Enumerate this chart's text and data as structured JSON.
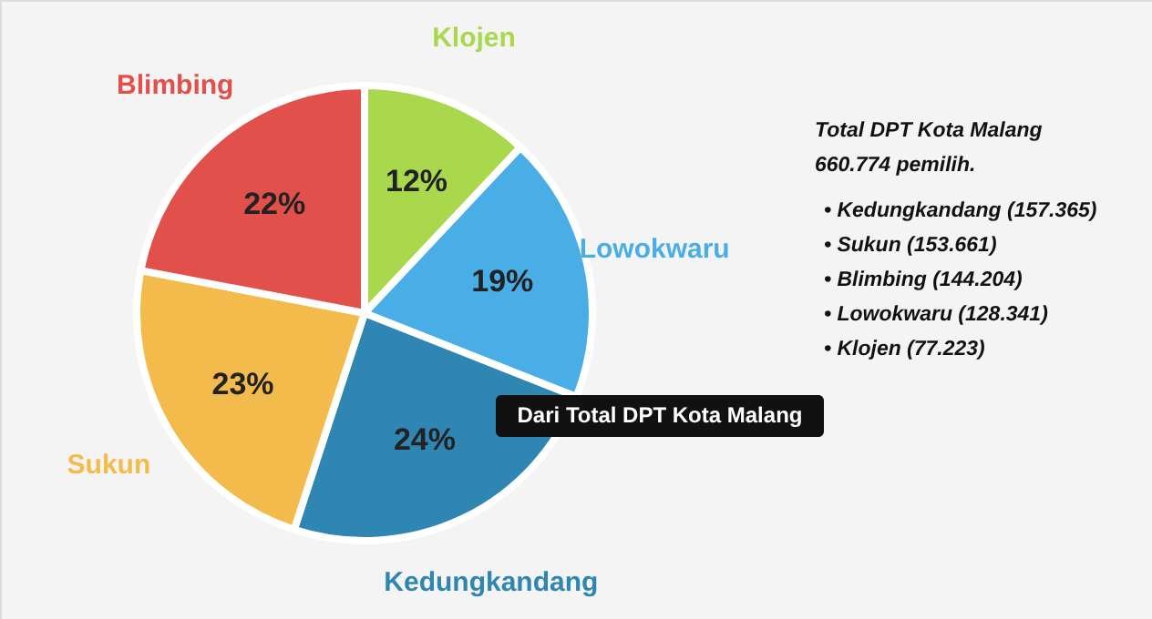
{
  "chart_data": {
    "type": "pie",
    "categories": [
      "Klojen",
      "Lowokwaru",
      "Kedungkandang",
      "Sukun",
      "Blimbing"
    ],
    "values": [
      12,
      19,
      24,
      23,
      22
    ],
    "colors": [
      "#a9d84c",
      "#4aaee6",
      "#2f86b2",
      "#f2bb4c",
      "#e2504c"
    ],
    "value_labels": [
      "12%",
      "19%",
      "24%",
      "23%",
      "22%"
    ],
    "legend": false,
    "annotations": [
      "Total DPT Kota Malang",
      "660.774 pemilih.",
      "• Kedungkandang (157.365)",
      "• Sukun (153.661)",
      "• Blimbing (144.204)",
      "• Lowokwaru (128.341)",
      "• Klojen (77.223)",
      "Dari Total DPT Kota Malang"
    ]
  }
}
